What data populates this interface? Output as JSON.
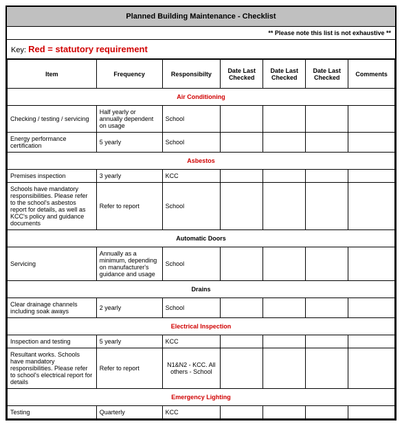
{
  "title": "Planned Building Maintenance - Checklist",
  "note": "** Please note this list is not exhaustive **",
  "key_label": "Key:",
  "key_value": "Red = statutory requirement",
  "columns": [
    "Item",
    "Frequency",
    "Responsibilty",
    "Date Last Checked",
    "Date Last Checked",
    "Date Last Checked",
    "Comments"
  ],
  "colors": {
    "statutory": "#d00000",
    "header_bg": "#c0c0c0",
    "border": "#000000"
  },
  "sections": [
    {
      "name": "Air Conditioning",
      "red": true,
      "rows": [
        {
          "item": "Checking / testing / servicing",
          "freq": "Half yearly or annually dependent on usage",
          "resp": "School",
          "d1": "",
          "d2": "",
          "d3": "",
          "com": ""
        },
        {
          "item": "Energy performance certification",
          "freq": "5 yearly",
          "resp": "School",
          "d1": "",
          "d2": "",
          "d3": "",
          "com": ""
        }
      ]
    },
    {
      "name": "Asbestos",
      "red": true,
      "rows": [
        {
          "item": "Premises inspection",
          "freq": "3 yearly",
          "resp": "KCC",
          "d1": "",
          "d2": "",
          "d3": "",
          "com": ""
        },
        {
          "item": "Schools have mandatory responsibilities. Please refer to the school's asbestos report for details, as well as KCC's policy and guidance documents",
          "freq": "Refer to report",
          "resp": "School",
          "d1": "",
          "d2": "",
          "d3": "",
          "com": ""
        }
      ]
    },
    {
      "name": "Automatic Doors",
      "red": false,
      "rows": [
        {
          "item": "Servicing",
          "freq": "Annually as a minimum, depending on manufacturer's guidance and usage",
          "resp": "School",
          "d1": "",
          "d2": "",
          "d3": "",
          "com": ""
        }
      ]
    },
    {
      "name": "Drains",
      "red": false,
      "rows": [
        {
          "item": "Clear drainage channels including soak aways",
          "freq": "2 yearly",
          "resp": "School",
          "d1": "",
          "d2": "",
          "d3": "",
          "com": ""
        }
      ]
    },
    {
      "name": "Electrical Inspection",
      "red": true,
      "rows": [
        {
          "item": "Inspection and testing",
          "freq": "5 yearly",
          "resp": "KCC",
          "d1": "",
          "d2": "",
          "d3": "",
          "com": ""
        },
        {
          "item": "Resultant works.  Schools have mandatory responsibilities.  Please refer to school's electrical report for details",
          "freq": "Refer to report",
          "resp": "N1&N2 - KCC. All others - School",
          "resp_center": true,
          "d1": "",
          "d2": "",
          "d3": "",
          "com": ""
        }
      ]
    },
    {
      "name": "Emergency Lighting",
      "red": true,
      "rows": [
        {
          "item": "Testing",
          "freq": "Quarterly",
          "resp": "KCC",
          "d1": "",
          "d2": "",
          "d3": "",
          "com": ""
        }
      ]
    }
  ]
}
